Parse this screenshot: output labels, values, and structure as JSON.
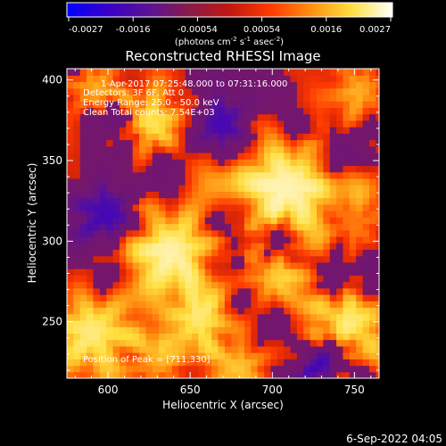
{
  "colorbar": {
    "tick_labels": [
      "-0.0027",
      "-0.0016",
      "-0.00054",
      "0.00054",
      "0.0016",
      "0.0027"
    ],
    "units_prefix": "(photons cm",
    "units_exp1": "-2",
    "units_mid": " s",
    "units_exp2": "-1",
    "units_mid2": " asec",
    "units_exp3": "-2",
    "units_suffix": ")",
    "colors": [
      "#0000ff",
      "#3a00c8",
      "#5a1296",
      "#8a1a4a",
      "#c01810",
      "#ff3a00",
      "#ff9010",
      "#ffe040",
      "#ffffff"
    ]
  },
  "header": {
    "title": "Reconstructed RHESSI Image"
  },
  "chart_data": {
    "type": "heatmap",
    "title": "Reconstructed RHESSI Image",
    "xlabel": "Heliocentric X (arcsec)",
    "ylabel": "Heliocentric Y (arcsec)",
    "xlim": [
      575,
      765
    ],
    "ylim": [
      215,
      407
    ],
    "xticks": [
      600,
      650,
      700,
      750
    ],
    "yticks": [
      250,
      300,
      350,
      400
    ],
    "annotations": [
      "1-Apr-2017 07:25:48.000 to 07:31:16.000",
      "Detectors: 3F 6F, Att 0",
      "Energy Range: 25.0 - 50.0 keV",
      "Clean     Total counts: 7.54E+03",
      "Position of Peak = [711,330]"
    ],
    "peak": [
      711,
      330
    ],
    "value_range": [
      -0.0027,
      0.0027
    ],
    "blobs": [
      {
        "x": 711,
        "y": 335,
        "amp": 1.0,
        "r": 22
      },
      {
        "x": 640,
        "y": 296,
        "amp": 0.85,
        "r": 20
      },
      {
        "x": 700,
        "y": 278,
        "amp": 0.45,
        "r": 14
      },
      {
        "x": 625,
        "y": 373,
        "amp": 0.7,
        "r": 14
      },
      {
        "x": 592,
        "y": 245,
        "amp": 0.75,
        "r": 18
      },
      {
        "x": 745,
        "y": 248,
        "amp": 0.7,
        "r": 20
      },
      {
        "x": 655,
        "y": 252,
        "amp": 0.55,
        "r": 13
      },
      {
        "x": 630,
        "y": 225,
        "amp": 0.45,
        "r": 14
      },
      {
        "x": 680,
        "y": 222,
        "amp": 0.4,
        "r": 12
      },
      {
        "x": 592,
        "y": 395,
        "amp": 0.5,
        "r": 12
      },
      {
        "x": 750,
        "y": 310,
        "amp": 0.35,
        "r": 12
      },
      {
        "x": 755,
        "y": 395,
        "amp": 0.4,
        "r": 14
      },
      {
        "x": 600,
        "y": 318,
        "amp": -0.6,
        "r": 16
      },
      {
        "x": 668,
        "y": 372,
        "amp": -0.55,
        "r": 14
      },
      {
        "x": 735,
        "y": 228,
        "amp": -0.65,
        "r": 12
      },
      {
        "x": 702,
        "y": 302,
        "amp": -0.45,
        "r": 10
      },
      {
        "x": 738,
        "y": 360,
        "amp": -0.4,
        "r": 14
      },
      {
        "x": 605,
        "y": 372,
        "amp": -0.35,
        "r": 10
      },
      {
        "x": 680,
        "y": 300,
        "amp": -0.35,
        "r": 10
      },
      {
        "x": 740,
        "y": 278,
        "amp": -0.45,
        "r": 12
      }
    ]
  },
  "footer": {
    "timestamp": "6-Sep-2022 04:05"
  }
}
